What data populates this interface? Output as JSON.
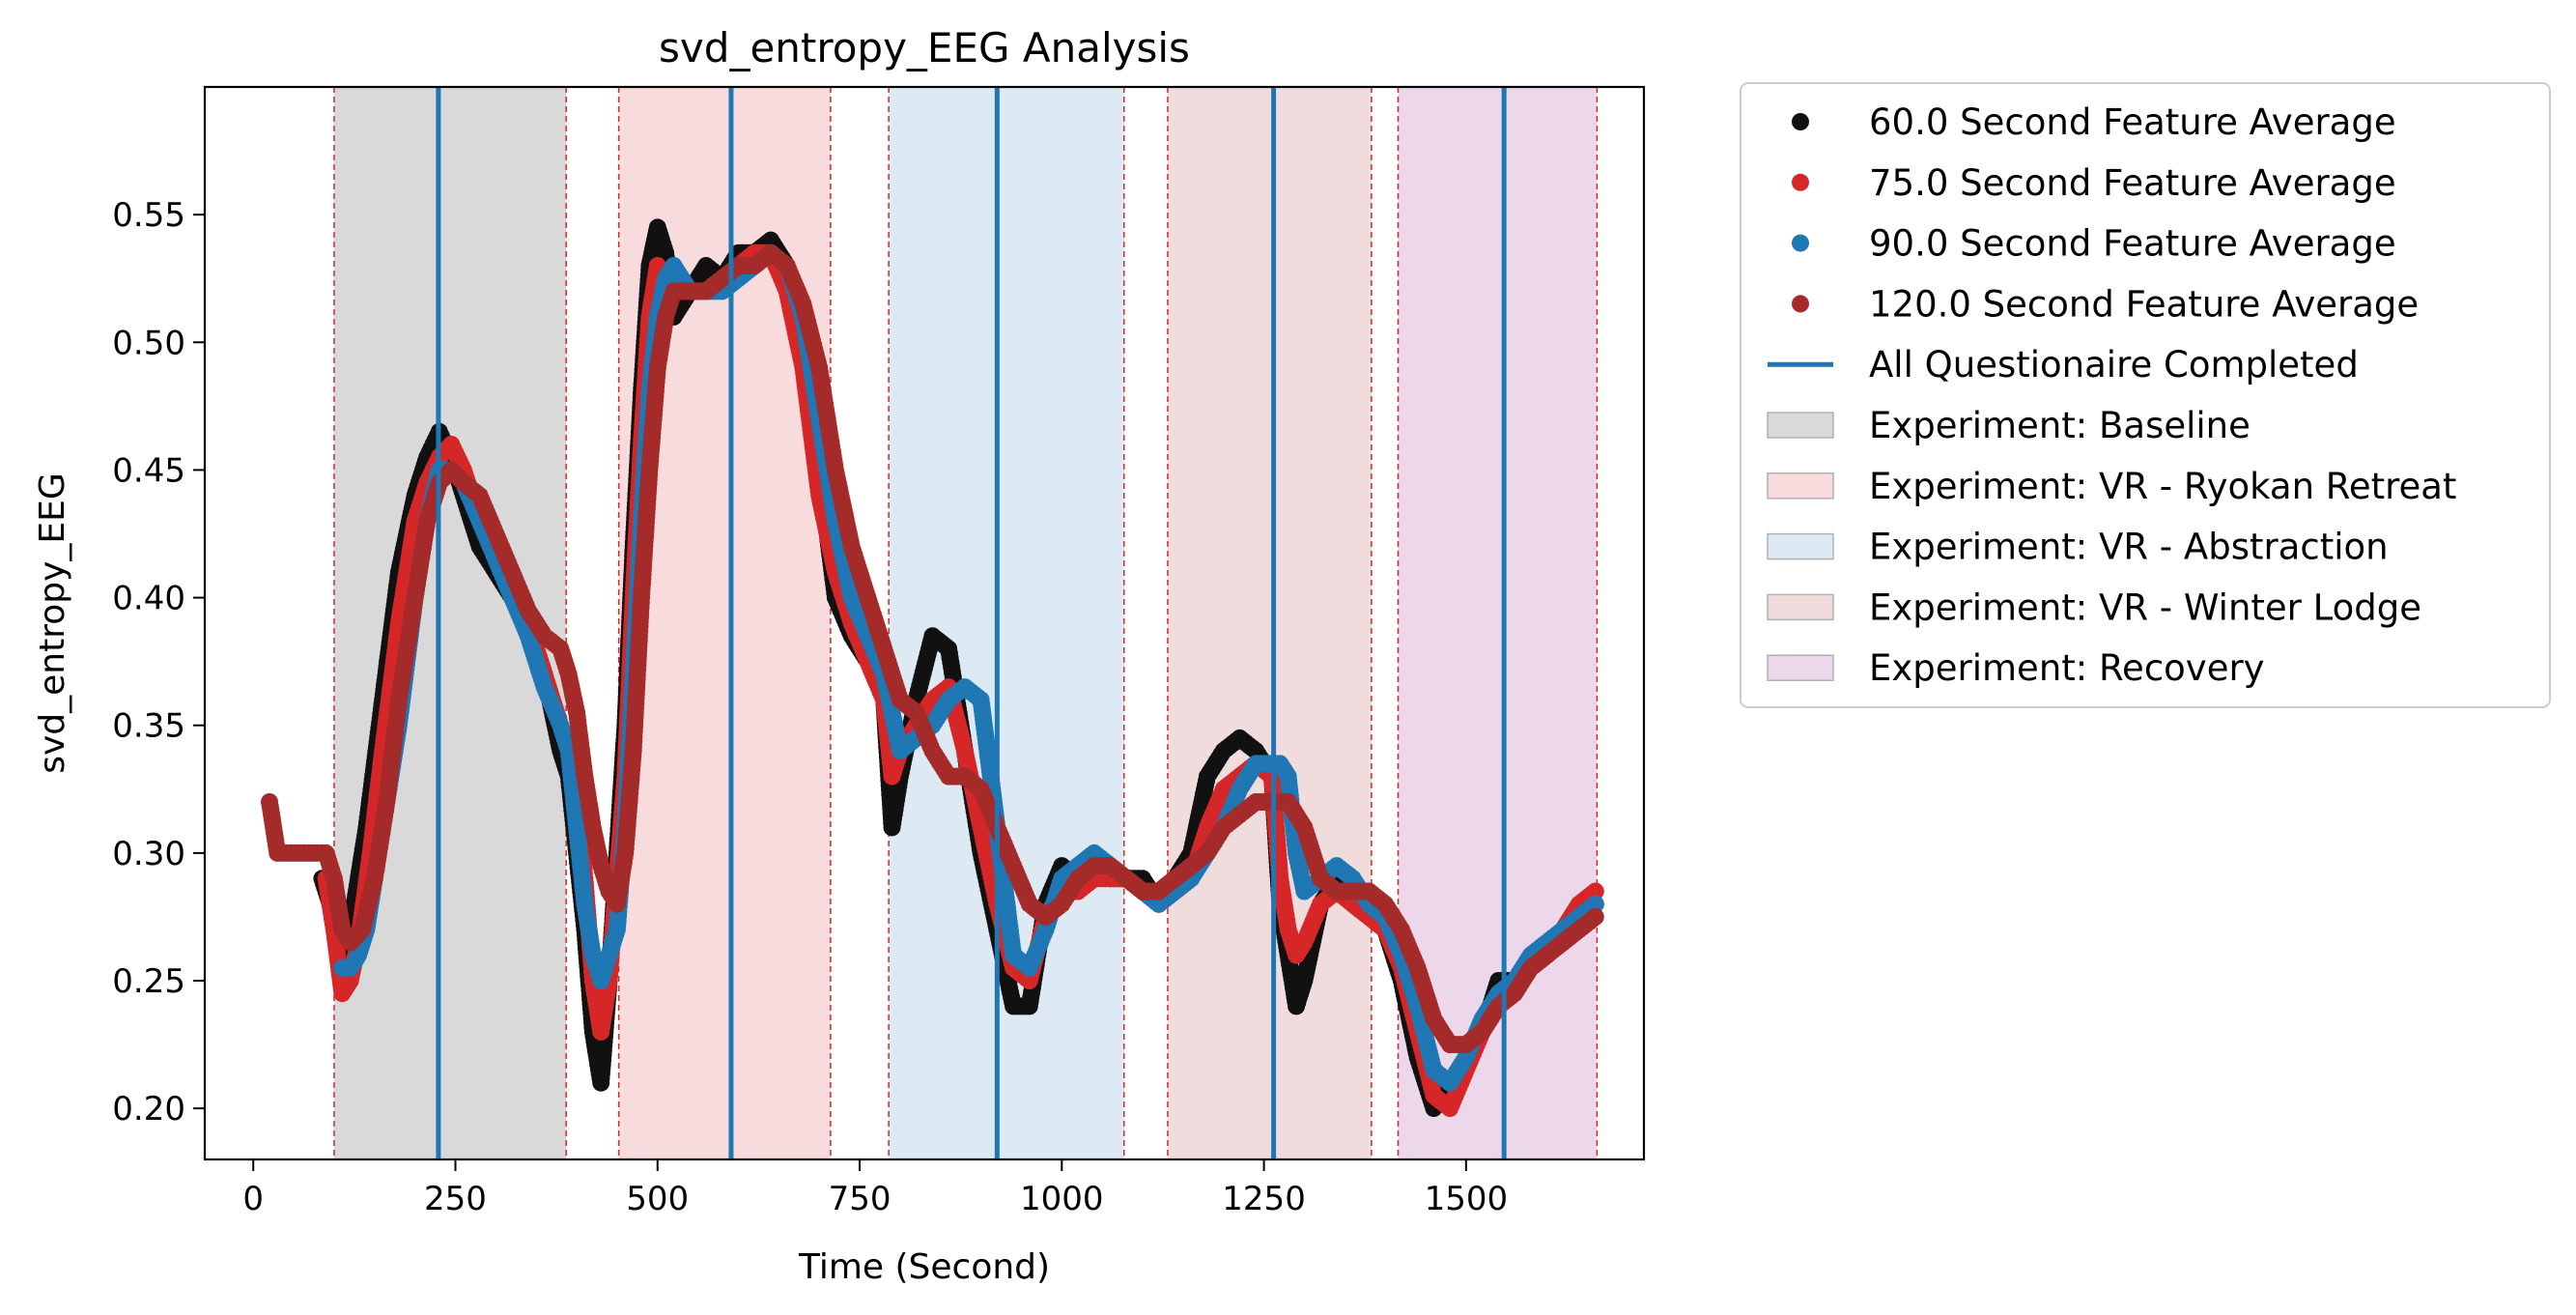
{
  "chart_data": {
    "type": "scatter",
    "title": "svd_entropy_EEG Analysis",
    "xlabel": "Time (Second)",
    "ylabel": "svd_entropy_EEG",
    "xlim": [
      -60,
      1720
    ],
    "ylim": [
      0.18,
      0.6
    ],
    "xticks": [
      0,
      250,
      500,
      750,
      1000,
      1250,
      1500
    ],
    "yticks": [
      0.2,
      0.25,
      0.3,
      0.35,
      0.4,
      0.45,
      0.5,
      0.55
    ],
    "legend_position": "outside-right",
    "grid": false,
    "phases": [
      {
        "name": "Experiment: Baseline",
        "start": 100,
        "end": 387,
        "color": "#d9d9d9"
      },
      {
        "name": "Experiment: VR - Ryokan Retreat",
        "start": 452,
        "end": 714,
        "color": "#f8dbdd"
      },
      {
        "name": "Experiment: VR - Abstraction",
        "start": 786,
        "end": 1077,
        "color": "#dde9f3"
      },
      {
        "name": "Experiment: VR - Winter Lodge",
        "start": 1131,
        "end": 1383,
        "color": "#f0dcdc"
      },
      {
        "name": "Experiment: Recovery",
        "start": 1416,
        "end": 1662,
        "color": "#ecd8ea"
      }
    ],
    "questionnaire_line": {
      "name": "All Questionaire Completed",
      "color": "#1f77b4",
      "x": [
        229,
        591,
        920,
        1262,
        1547
      ]
    },
    "series": [
      {
        "name": "60.0 Second Feature Average",
        "color": "#111111",
        "x": [
          85,
          95,
          105,
          115,
          125,
          140,
          160,
          180,
          200,
          215,
          230,
          245,
          260,
          280,
          300,
          320,
          340,
          360,
          380,
          390,
          400,
          410,
          420,
          430,
          440,
          450,
          460,
          470,
          480,
          490,
          500,
          510,
          520,
          540,
          560,
          580,
          600,
          620,
          640,
          660,
          680,
          700,
          720,
          740,
          760,
          780,
          790,
          800,
          820,
          840,
          860,
          880,
          900,
          920,
          940,
          960,
          980,
          1000,
          1020,
          1040,
          1060,
          1080,
          1100,
          1120,
          1140,
          1160,
          1180,
          1200,
          1220,
          1240,
          1260,
          1270,
          1280,
          1290,
          1300,
          1320,
          1340,
          1360,
          1380,
          1400,
          1420,
          1440,
          1460,
          1480,
          1500,
          1520,
          1540,
          1560,
          1580,
          1600,
          1620,
          1640,
          1660
        ],
        "y": [
          0.29,
          0.28,
          0.26,
          0.27,
          0.28,
          0.31,
          0.36,
          0.41,
          0.44,
          0.455,
          0.465,
          0.455,
          0.44,
          0.42,
          0.41,
          0.4,
          0.39,
          0.37,
          0.34,
          0.33,
          0.3,
          0.27,
          0.23,
          0.21,
          0.25,
          0.3,
          0.35,
          0.42,
          0.48,
          0.53,
          0.545,
          0.535,
          0.51,
          0.52,
          0.53,
          0.525,
          0.535,
          0.535,
          0.54,
          0.53,
          0.5,
          0.45,
          0.4,
          0.385,
          0.375,
          0.36,
          0.31,
          0.33,
          0.36,
          0.385,
          0.38,
          0.34,
          0.3,
          0.27,
          0.24,
          0.24,
          0.28,
          0.295,
          0.29,
          0.295,
          0.29,
          0.29,
          0.29,
          0.28,
          0.29,
          0.3,
          0.33,
          0.34,
          0.345,
          0.34,
          0.33,
          0.28,
          0.26,
          0.24,
          0.25,
          0.28,
          0.29,
          0.28,
          0.275,
          0.27,
          0.25,
          0.22,
          0.2,
          0.21,
          0.22,
          0.23,
          0.25,
          0.25,
          0.255,
          0.26,
          0.27,
          0.28,
          0.28
        ]
      },
      {
        "name": "75.0 Second Feature Average",
        "color": "#d62728",
        "x": [
          90,
          100,
          110,
          120,
          130,
          145,
          160,
          180,
          200,
          215,
          230,
          245,
          260,
          280,
          300,
          320,
          340,
          360,
          380,
          390,
          400,
          410,
          420,
          430,
          440,
          450,
          460,
          470,
          480,
          490,
          500,
          510,
          520,
          540,
          560,
          580,
          600,
          620,
          640,
          660,
          680,
          700,
          720,
          740,
          760,
          780,
          790,
          800,
          820,
          840,
          860,
          880,
          900,
          920,
          940,
          960,
          980,
          1000,
          1020,
          1040,
          1060,
          1080,
          1100,
          1120,
          1140,
          1160,
          1180,
          1200,
          1220,
          1240,
          1260,
          1270,
          1280,
          1290,
          1300,
          1320,
          1340,
          1360,
          1380,
          1400,
          1420,
          1440,
          1460,
          1480,
          1500,
          1520,
          1540,
          1560,
          1580,
          1600,
          1620,
          1640,
          1660
        ],
        "y": [
          0.29,
          0.27,
          0.245,
          0.25,
          0.265,
          0.3,
          0.34,
          0.39,
          0.43,
          0.445,
          0.455,
          0.46,
          0.45,
          0.43,
          0.42,
          0.405,
          0.39,
          0.37,
          0.35,
          0.34,
          0.32,
          0.29,
          0.25,
          0.23,
          0.25,
          0.29,
          0.33,
          0.4,
          0.46,
          0.51,
          0.53,
          0.525,
          0.52,
          0.52,
          0.52,
          0.525,
          0.53,
          0.535,
          0.535,
          0.52,
          0.49,
          0.44,
          0.41,
          0.39,
          0.375,
          0.36,
          0.33,
          0.34,
          0.35,
          0.36,
          0.365,
          0.34,
          0.31,
          0.28,
          0.255,
          0.25,
          0.275,
          0.285,
          0.285,
          0.29,
          0.29,
          0.29,
          0.285,
          0.28,
          0.285,
          0.29,
          0.31,
          0.325,
          0.33,
          0.335,
          0.33,
          0.29,
          0.27,
          0.26,
          0.265,
          0.28,
          0.285,
          0.28,
          0.275,
          0.27,
          0.255,
          0.23,
          0.205,
          0.2,
          0.215,
          0.23,
          0.245,
          0.25,
          0.255,
          0.26,
          0.27,
          0.28,
          0.285
        ]
      },
      {
        "name": "90.0 Second Feature Average",
        "color": "#1f77b4",
        "x": [
          110,
          120,
          130,
          140,
          150,
          165,
          180,
          200,
          215,
          230,
          245,
          260,
          280,
          300,
          320,
          340,
          360,
          380,
          390,
          400,
          410,
          420,
          430,
          440,
          450,
          460,
          470,
          480,
          490,
          500,
          510,
          520,
          540,
          560,
          580,
          600,
          620,
          640,
          660,
          680,
          700,
          720,
          740,
          760,
          780,
          800,
          820,
          840,
          860,
          880,
          900,
          920,
          940,
          960,
          980,
          1000,
          1020,
          1040,
          1060,
          1080,
          1100,
          1120,
          1140,
          1160,
          1180,
          1200,
          1220,
          1240,
          1260,
          1270,
          1280,
          1290,
          1300,
          1320,
          1340,
          1360,
          1380,
          1400,
          1420,
          1440,
          1460,
          1480,
          1500,
          1520,
          1540,
          1560,
          1580,
          1600,
          1620,
          1640,
          1660
        ],
        "y": [
          0.255,
          0.255,
          0.26,
          0.27,
          0.29,
          0.32,
          0.35,
          0.4,
          0.43,
          0.45,
          0.45,
          0.445,
          0.43,
          0.415,
          0.4,
          0.385,
          0.365,
          0.35,
          0.34,
          0.31,
          0.28,
          0.26,
          0.25,
          0.26,
          0.27,
          0.31,
          0.37,
          0.43,
          0.48,
          0.51,
          0.525,
          0.53,
          0.52,
          0.52,
          0.52,
          0.525,
          0.53,
          0.535,
          0.53,
          0.51,
          0.47,
          0.43,
          0.4,
          0.385,
          0.37,
          0.34,
          0.345,
          0.35,
          0.36,
          0.365,
          0.36,
          0.31,
          0.26,
          0.255,
          0.27,
          0.29,
          0.295,
          0.3,
          0.295,
          0.29,
          0.285,
          0.28,
          0.285,
          0.29,
          0.3,
          0.31,
          0.325,
          0.335,
          0.335,
          0.335,
          0.33,
          0.3,
          0.285,
          0.29,
          0.295,
          0.29,
          0.28,
          0.275,
          0.26,
          0.24,
          0.215,
          0.21,
          0.22,
          0.235,
          0.245,
          0.25,
          0.26,
          0.265,
          0.27,
          0.275,
          0.28
        ]
      },
      {
        "name": "120.0 Second Feature Average",
        "color": "#a52a2a",
        "x": [
          20,
          25,
          30,
          90,
          100,
          110,
          120,
          135,
          150,
          165,
          180,
          200,
          215,
          230,
          245,
          260,
          280,
          300,
          320,
          340,
          360,
          380,
          390,
          400,
          410,
          420,
          430,
          440,
          450,
          460,
          470,
          480,
          490,
          500,
          510,
          520,
          540,
          560,
          580,
          600,
          620,
          640,
          660,
          680,
          700,
          720,
          740,
          760,
          780,
          800,
          820,
          840,
          860,
          880,
          900,
          920,
          940,
          960,
          980,
          1000,
          1020,
          1040,
          1060,
          1080,
          1100,
          1120,
          1140,
          1160,
          1180,
          1200,
          1220,
          1240,
          1260,
          1270,
          1280,
          1290,
          1300,
          1320,
          1340,
          1360,
          1380,
          1400,
          1420,
          1440,
          1460,
          1480,
          1500,
          1520,
          1540,
          1560,
          1580,
          1600,
          1620,
          1640,
          1660
        ],
        "y": [
          0.32,
          0.31,
          0.3,
          0.3,
          0.29,
          0.27,
          0.265,
          0.27,
          0.29,
          0.32,
          0.36,
          0.4,
          0.43,
          0.445,
          0.45,
          0.445,
          0.44,
          0.425,
          0.41,
          0.395,
          0.385,
          0.38,
          0.37,
          0.355,
          0.33,
          0.31,
          0.295,
          0.285,
          0.28,
          0.3,
          0.34,
          0.4,
          0.45,
          0.49,
          0.51,
          0.52,
          0.52,
          0.52,
          0.525,
          0.53,
          0.53,
          0.535,
          0.53,
          0.515,
          0.49,
          0.45,
          0.42,
          0.4,
          0.38,
          0.36,
          0.355,
          0.34,
          0.33,
          0.33,
          0.325,
          0.31,
          0.295,
          0.28,
          0.275,
          0.28,
          0.29,
          0.295,
          0.295,
          0.29,
          0.285,
          0.285,
          0.29,
          0.295,
          0.3,
          0.31,
          0.315,
          0.32,
          0.32,
          0.32,
          0.32,
          0.315,
          0.31,
          0.29,
          0.285,
          0.285,
          0.285,
          0.28,
          0.27,
          0.255,
          0.235,
          0.225,
          0.225,
          0.23,
          0.24,
          0.245,
          0.255,
          0.26,
          0.265,
          0.27,
          0.275
        ]
      }
    ]
  }
}
